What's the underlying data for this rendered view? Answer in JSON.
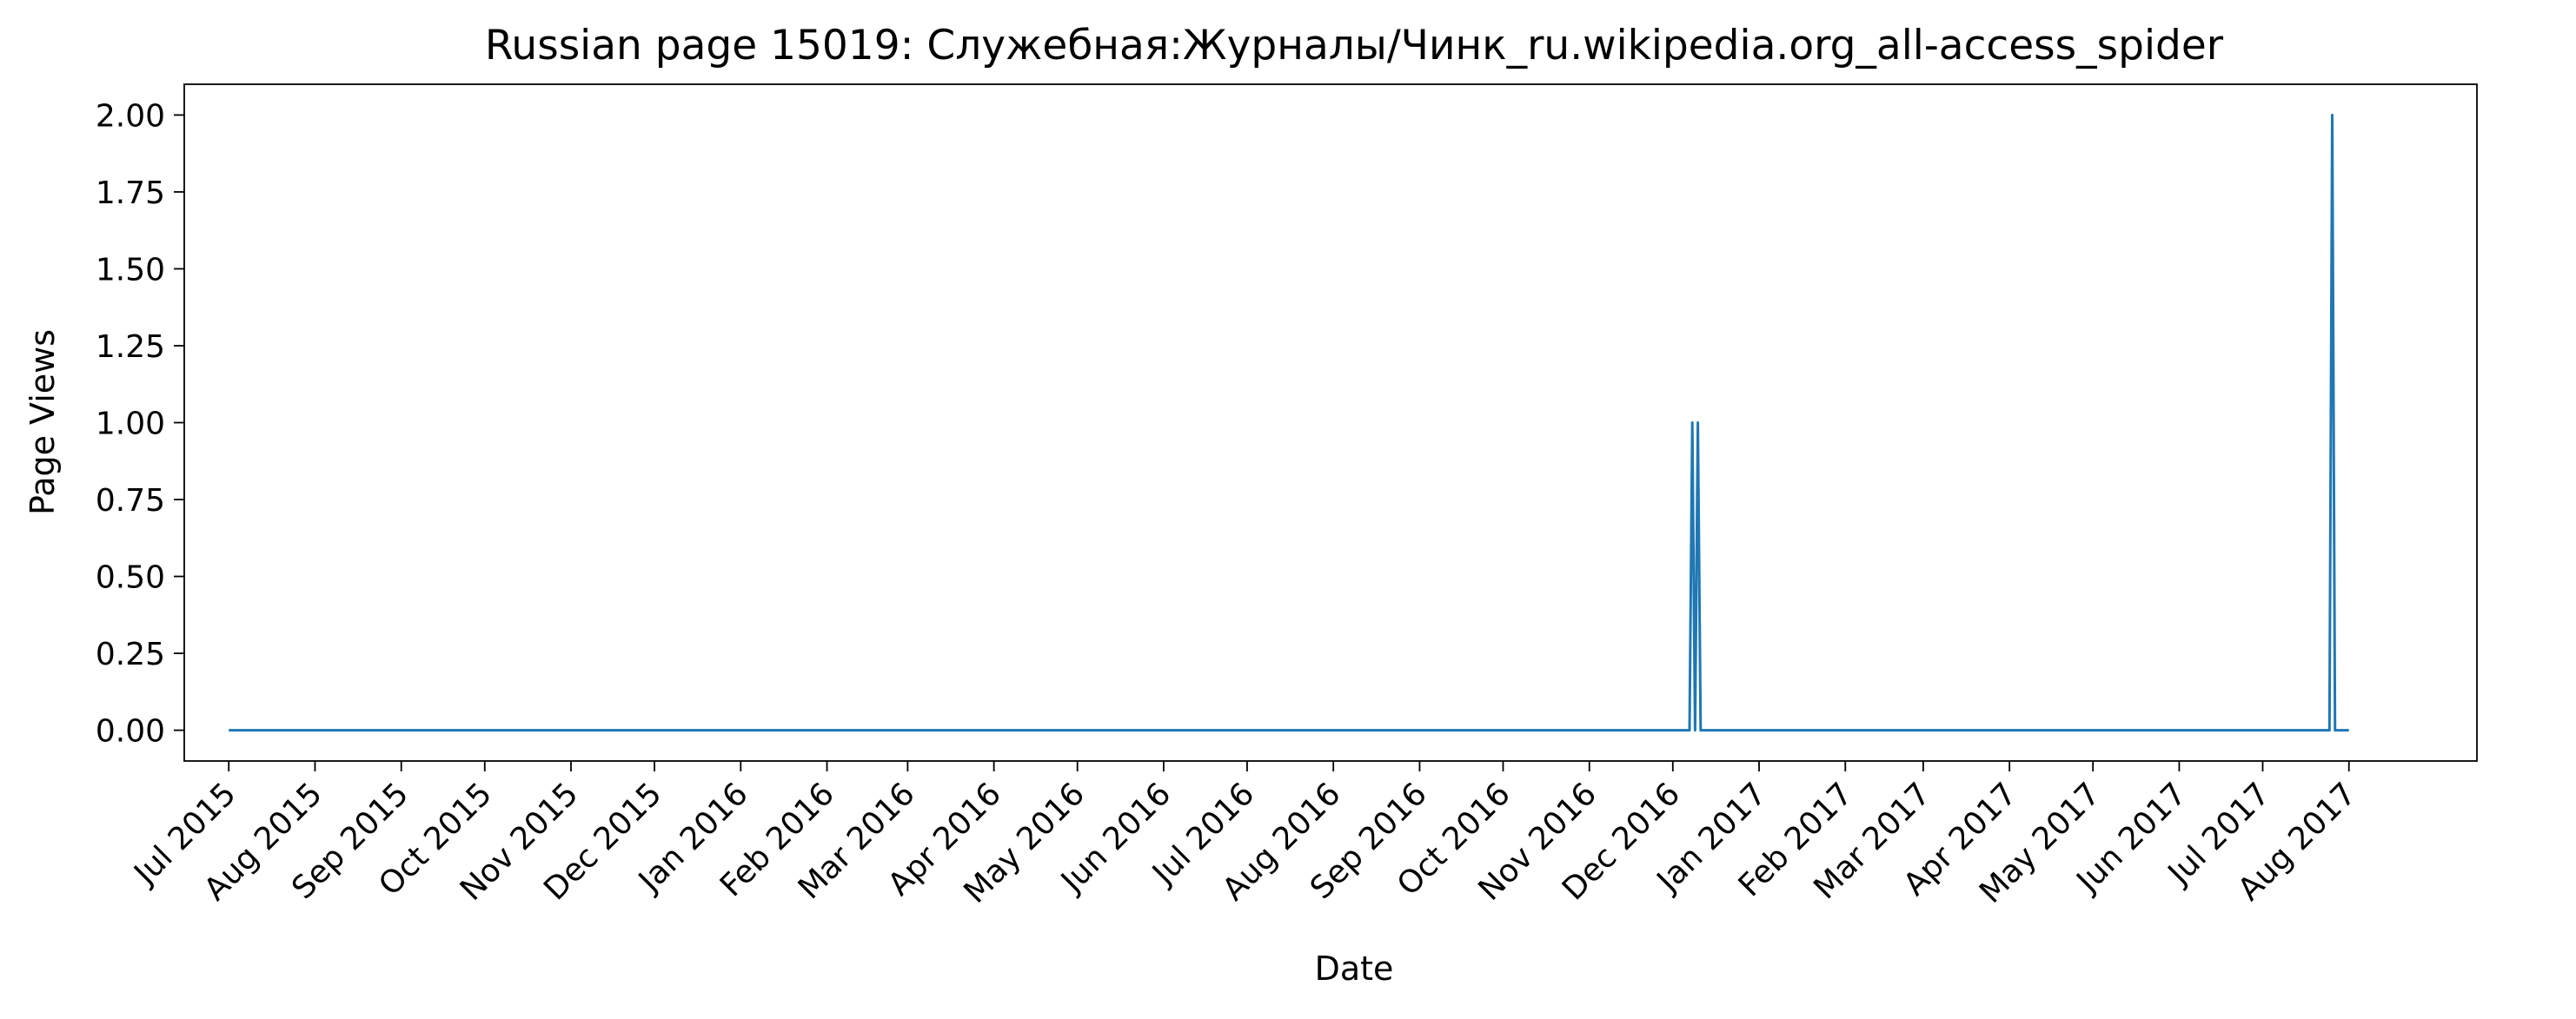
{
  "chart_data": {
    "type": "line",
    "title": "Russian page 15019: Служебная:Журналы/Чинк_ru.wikipedia.org_all-access_spider",
    "xlabel": "Date",
    "ylabel": "Page Views",
    "xlim": [
      "2015-06-15",
      "2017-09-16"
    ],
    "ylim": [
      -0.1,
      2.1
    ],
    "grid": false,
    "legend": "none",
    "line_color": "#1f77b4",
    "y_ticks": [
      0,
      0.25,
      0.5,
      0.75,
      1.0,
      1.25,
      1.5,
      1.75,
      2.0
    ],
    "y_tick_labels": [
      "0.00",
      "0.25",
      "0.50",
      "0.75",
      "1.00",
      "1.25",
      "1.50",
      "1.75",
      "2.00"
    ],
    "x_ticks": [
      {
        "date": "2015-07-01",
        "label": "Jul 2015"
      },
      {
        "date": "2015-08-01",
        "label": "Aug 2015"
      },
      {
        "date": "2015-09-01",
        "label": "Sep 2015"
      },
      {
        "date": "2015-10-01",
        "label": "Oct 2015"
      },
      {
        "date": "2015-11-01",
        "label": "Nov 2015"
      },
      {
        "date": "2015-12-01",
        "label": "Dec 2015"
      },
      {
        "date": "2016-01-01",
        "label": "Jan 2016"
      },
      {
        "date": "2016-02-01",
        "label": "Feb 2016"
      },
      {
        "date": "2016-03-01",
        "label": "Mar 2016"
      },
      {
        "date": "2016-04-01",
        "label": "Apr 2016"
      },
      {
        "date": "2016-05-01",
        "label": "May 2016"
      },
      {
        "date": "2016-06-01",
        "label": "Jun 2016"
      },
      {
        "date": "2016-07-01",
        "label": "Jul 2016"
      },
      {
        "date": "2016-08-01",
        "label": "Aug 2016"
      },
      {
        "date": "2016-09-01",
        "label": "Sep 2016"
      },
      {
        "date": "2016-10-01",
        "label": "Oct 2016"
      },
      {
        "date": "2016-11-01",
        "label": "Nov 2016"
      },
      {
        "date": "2016-12-01",
        "label": "Dec 2016"
      },
      {
        "date": "2017-01-01",
        "label": "Jan 2017"
      },
      {
        "date": "2017-02-01",
        "label": "Feb 2017"
      },
      {
        "date": "2017-03-01",
        "label": "Mar 2017"
      },
      {
        "date": "2017-04-01",
        "label": "Apr 2017"
      },
      {
        "date": "2017-05-01",
        "label": "May 2017"
      },
      {
        "date": "2017-06-01",
        "label": "Jun 2017"
      },
      {
        "date": "2017-07-01",
        "label": "Jul 2017"
      },
      {
        "date": "2017-08-01",
        "label": "Aug 2017"
      }
    ],
    "series": [
      {
        "points": [
          {
            "x": "2015-07-01",
            "y": 0
          },
          {
            "x": "2016-12-07",
            "y": 0
          },
          {
            "x": "2016-12-08",
            "y": 1
          },
          {
            "x": "2016-12-09",
            "y": 0
          },
          {
            "x": "2016-12-10",
            "y": 1
          },
          {
            "x": "2016-12-11",
            "y": 0
          },
          {
            "x": "2017-07-25",
            "y": 0
          },
          {
            "x": "2017-07-26",
            "y": 2
          },
          {
            "x": "2017-07-27",
            "y": 0
          },
          {
            "x": "2017-08-01",
            "y": 0
          }
        ]
      }
    ]
  }
}
